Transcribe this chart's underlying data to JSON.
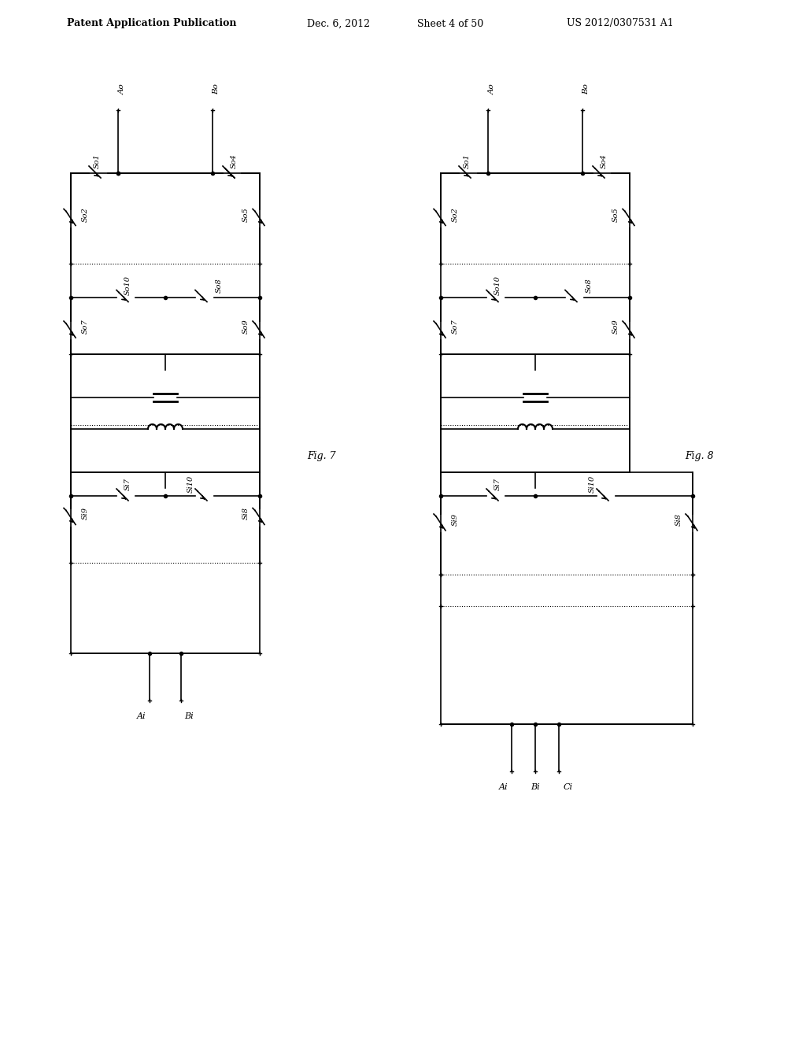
{
  "bg_color": "#ffffff",
  "header_text": "Patent Application Publication",
  "header_date": "Dec. 6, 2012",
  "header_sheet": "Sheet 4 of 50",
  "header_patent": "US 2012/0307531 A1",
  "fig7_label": "Fig. 7",
  "fig8_label": "Fig. 8",
  "line_color": "#000000",
  "text_color": "#000000"
}
